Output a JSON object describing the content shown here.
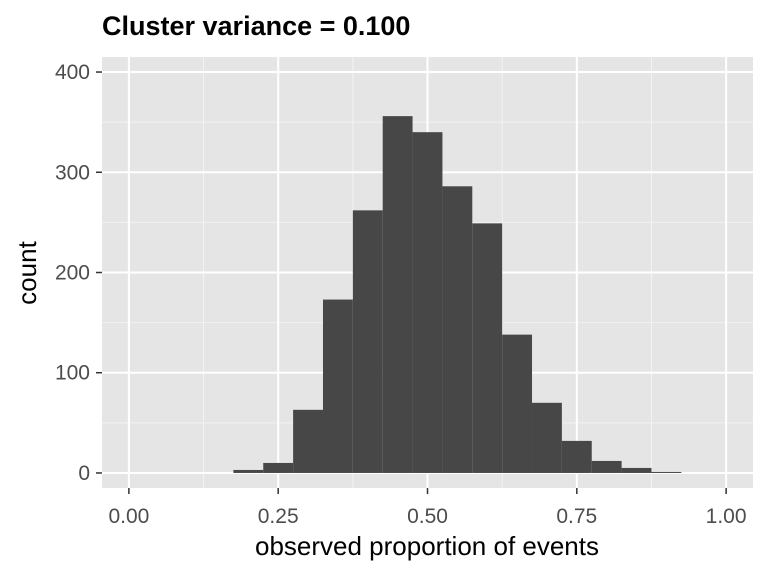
{
  "chart_data": {
    "type": "bar",
    "title": "Cluster variance = 0.100",
    "xlabel": "observed proportion of events",
    "ylabel": "count",
    "xlim": [
      -0.045,
      1.045
    ],
    "ylim": [
      -15,
      415
    ],
    "x_ticks": [
      0.0,
      0.25,
      0.5,
      0.75,
      1.0
    ],
    "x_tick_labels": [
      "0.00",
      "0.25",
      "0.50",
      "0.75",
      "1.00"
    ],
    "y_ticks": [
      0,
      100,
      200,
      300,
      400
    ],
    "y_tick_labels": [
      "0",
      "100",
      "200",
      "300",
      "400"
    ],
    "grid": true,
    "bin_width": 0.05,
    "bins": [
      {
        "x0": 0.175,
        "x1": 0.225,
        "count": 3
      },
      {
        "x0": 0.225,
        "x1": 0.275,
        "count": 10
      },
      {
        "x0": 0.275,
        "x1": 0.325,
        "count": 63
      },
      {
        "x0": 0.325,
        "x1": 0.375,
        "count": 173
      },
      {
        "x0": 0.375,
        "x1": 0.425,
        "count": 262
      },
      {
        "x0": 0.425,
        "x1": 0.475,
        "count": 356
      },
      {
        "x0": 0.475,
        "x1": 0.525,
        "count": 340
      },
      {
        "x0": 0.525,
        "x1": 0.575,
        "count": 286
      },
      {
        "x0": 0.575,
        "x1": 0.625,
        "count": 249
      },
      {
        "x0": 0.625,
        "x1": 0.675,
        "count": 138
      },
      {
        "x0": 0.675,
        "x1": 0.725,
        "count": 70
      },
      {
        "x0": 0.725,
        "x1": 0.775,
        "count": 32
      },
      {
        "x0": 0.775,
        "x1": 0.825,
        "count": 12
      },
      {
        "x0": 0.825,
        "x1": 0.875,
        "count": 5
      },
      {
        "x0": 0.875,
        "x1": 0.925,
        "count": 1
      }
    ],
    "colors": {
      "panel_background": "#e5e5e5",
      "grid_major": "#ffffff",
      "grid_minor": "#f2f2f2",
      "bar_fill": "#474747",
      "tick_mark": "#333333",
      "tick_label": "#4d4d4d",
      "text": "#000000"
    }
  }
}
